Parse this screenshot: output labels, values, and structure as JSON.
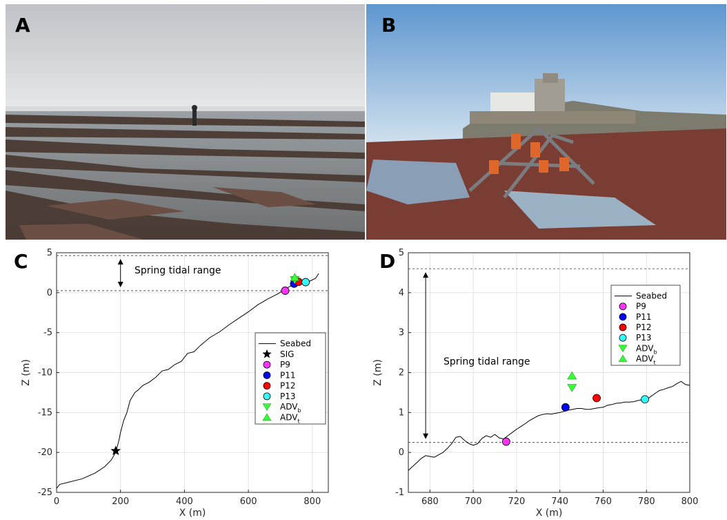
{
  "panels": {
    "A": "A",
    "B": "B",
    "C": "C",
    "D": "D"
  },
  "photo_a": {
    "description": "Wide rocky intertidal platform with parallel rock ridges and tide pools, a person standing in the distance, overcast sky and sea on the horizon"
  },
  "photo_b": {
    "description": "Metal instrument frame with orange floats on red-algae-covered rocks, stone fort with round tower on the hill behind, clear blue sky"
  },
  "chart_data": [
    {
      "id": "C",
      "type": "line",
      "title": "",
      "xlabel": "X (m)",
      "ylabel": "Z (m)",
      "xlim": [
        0,
        850
      ],
      "ylim": [
        -25,
        5
      ],
      "xticks": [
        0,
        200,
        400,
        600,
        800
      ],
      "yticks": [
        -25,
        -20,
        -15,
        -10,
        -5,
        0,
        5
      ],
      "grid": true,
      "annotation": "Spring tidal range",
      "tidal_lines": [
        0.25,
        4.65
      ],
      "arrow_x": 200,
      "legend_position": "middle-right",
      "series": [
        {
          "name": "Seabed",
          "kind": "line",
          "color": "#000000",
          "x": [
            0,
            10,
            40,
            80,
            120,
            150,
            170,
            185,
            195,
            200,
            210,
            220,
            230,
            245,
            255,
            270,
            290,
            310,
            330,
            350,
            370,
            390,
            410,
            430,
            450,
            480,
            510,
            540,
            570,
            600,
            630,
            660,
            690,
            710,
            730,
            750,
            770,
            790,
            810,
            820
          ],
          "y": [
            -24.5,
            -24.0,
            -23.7,
            -23.3,
            -22.6,
            -21.8,
            -21.0,
            -20.0,
            -18.5,
            -17.5,
            -16.0,
            -15.0,
            -13.5,
            -12.5,
            -12.2,
            -11.6,
            -11.2,
            -10.6,
            -9.8,
            -9.6,
            -9.0,
            -8.6,
            -7.6,
            -7.4,
            -6.6,
            -5.6,
            -4.9,
            -4.0,
            -3.2,
            -2.4,
            -1.5,
            -0.8,
            -0.2,
            0.3,
            0.8,
            1.0,
            1.2,
            1.4,
            1.8,
            2.4
          ]
        },
        {
          "name": "SIG",
          "kind": "star",
          "color": "#000000",
          "x": [
            185
          ],
          "y": [
            -19.8
          ]
        },
        {
          "name": "P9",
          "kind": "circle",
          "color": "#ff33ff",
          "x": [
            715
          ],
          "y": [
            0.25
          ]
        },
        {
          "name": "P11",
          "kind": "circle",
          "color": "#0000ff",
          "x": [
            743
          ],
          "y": [
            1.12
          ]
        },
        {
          "name": "P12",
          "kind": "circle",
          "color": "#ff0000",
          "x": [
            757
          ],
          "y": [
            1.35
          ]
        },
        {
          "name": "P13",
          "kind": "circle",
          "color": "#33ffff",
          "x": [
            779
          ],
          "y": [
            1.32
          ]
        },
        {
          "name": "ADV",
          "subscript": "b",
          "kind": "tri-down",
          "color": "#33ff33",
          "x": [
            745
          ],
          "y": [
            1.6
          ]
        },
        {
          "name": "ADV",
          "subscript": "t",
          "kind": "tri-up",
          "color": "#33ff33",
          "x": [
            745
          ],
          "y": [
            1.9
          ]
        }
      ]
    },
    {
      "id": "D",
      "type": "line",
      "title": "",
      "xlabel": "X (m)",
      "ylabel": "Z (m)",
      "xlim": [
        670,
        800
      ],
      "ylim": [
        -1,
        5
      ],
      "xticks": [
        680,
        700,
        720,
        740,
        760,
        780,
        800
      ],
      "yticks": [
        -1,
        0,
        1,
        2,
        3,
        4,
        5
      ],
      "grid": true,
      "annotation": "Spring tidal range",
      "tidal_lines": [
        0.25,
        4.6
      ],
      "arrow_x": 678,
      "legend_position": "top-right",
      "series": [
        {
          "name": "Seabed",
          "kind": "line",
          "color": "#000000",
          "x": [
            670,
            672,
            674,
            676,
            678,
            680,
            682,
            684,
            686,
            688,
            690,
            692,
            694,
            696,
            698,
            700,
            702,
            704,
            706,
            708,
            710,
            712,
            714,
            716,
            718,
            720,
            722,
            724,
            726,
            728,
            730,
            732,
            734,
            736,
            738,
            740,
            742,
            744,
            746,
            748,
            750,
            752,
            754,
            756,
            758,
            760,
            762,
            764,
            766,
            768,
            770,
            772,
            774,
            776,
            778,
            780,
            782,
            784,
            786,
            788,
            790,
            792,
            794,
            796,
            798,
            800
          ],
          "y": [
            -0.45,
            -0.35,
            -0.25,
            -0.15,
            -0.08,
            -0.1,
            -0.12,
            -0.06,
            0.0,
            0.1,
            0.22,
            0.38,
            0.4,
            0.3,
            0.22,
            0.18,
            0.22,
            0.35,
            0.42,
            0.38,
            0.45,
            0.36,
            0.34,
            0.42,
            0.5,
            0.58,
            0.65,
            0.72,
            0.8,
            0.86,
            0.92,
            0.95,
            0.97,
            0.96,
            0.98,
            1.0,
            1.03,
            1.06,
            1.08,
            1.1,
            1.1,
            1.08,
            1.08,
            1.1,
            1.12,
            1.13,
            1.18,
            1.2,
            1.23,
            1.24,
            1.26,
            1.26,
            1.27,
            1.3,
            1.32,
            1.32,
            1.4,
            1.48,
            1.55,
            1.58,
            1.62,
            1.65,
            1.72,
            1.78,
            1.7,
            1.68
          ]
        },
        {
          "name": "P9",
          "kind": "circle",
          "color": "#ff33ff",
          "x": [
            715.2
          ],
          "y": [
            0.27
          ]
        },
        {
          "name": "P11",
          "kind": "circle",
          "color": "#0000ff",
          "x": [
            742.6
          ],
          "y": [
            1.13
          ]
        },
        {
          "name": "P12",
          "kind": "circle",
          "color": "#ff0000",
          "x": [
            757
          ],
          "y": [
            1.36
          ]
        },
        {
          "name": "P13",
          "kind": "circle",
          "color": "#33ffff",
          "x": [
            779.3
          ],
          "y": [
            1.33
          ]
        },
        {
          "name": "ADV",
          "subscript": "b",
          "kind": "tri-down",
          "color": "#33ff33",
          "x": [
            745.6
          ],
          "y": [
            1.62
          ]
        },
        {
          "name": "ADV",
          "subscript": "t",
          "kind": "tri-up",
          "color": "#33ff33",
          "x": [
            745.6
          ],
          "y": [
            1.92
          ]
        }
      ]
    }
  ]
}
